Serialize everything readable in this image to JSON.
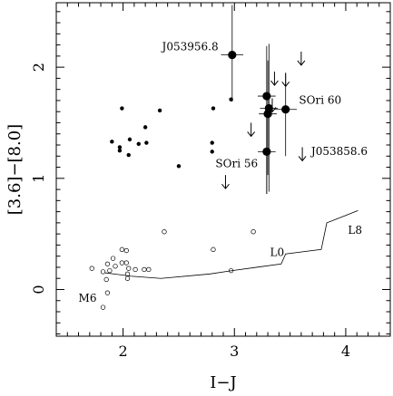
{
  "chart_data": {
    "type": "scatter",
    "xlabel": "I−J",
    "ylabel": "[3.6]−[8.0]",
    "xlim": [
      1.4,
      4.4
    ],
    "ylim": [
      -0.42,
      2.58
    ],
    "x_ticks": [
      2,
      3,
      4
    ],
    "x_tick_labels": [
      "2",
      "3",
      "4"
    ],
    "y_ticks": [
      0,
      1,
      2
    ],
    "y_tick_labels": [
      "0",
      "1",
      "2"
    ],
    "grid": false,
    "series": [
      {
        "marker": "small-filled-circle",
        "points": [
          [
            1.9,
            1.33
          ],
          [
            1.97,
            1.28
          ],
          [
            1.97,
            1.25
          ],
          [
            2.05,
            1.21
          ],
          [
            2.06,
            1.35
          ],
          [
            2.14,
            1.31
          ],
          [
            2.2,
            1.46
          ],
          [
            2.21,
            1.32
          ],
          [
            2.33,
            1.61
          ],
          [
            2.5,
            1.11
          ],
          [
            2.8,
            1.32
          ],
          [
            2.8,
            1.24
          ],
          [
            2.81,
            1.63
          ],
          [
            2.97,
            1.71
          ],
          [
            1.99,
            1.63
          ]
        ]
      },
      {
        "marker": "open-circle",
        "points": [
          [
            1.72,
            0.19
          ],
          [
            1.82,
            0.16
          ],
          [
            1.85,
            0.09
          ],
          [
            1.86,
            0.23
          ],
          [
            1.88,
            0.17
          ],
          [
            1.91,
            0.28
          ],
          [
            1.93,
            0.21
          ],
          [
            1.99,
            0.24
          ],
          [
            1.99,
            0.36
          ],
          [
            2.03,
            0.35
          ],
          [
            2.03,
            0.24
          ],
          [
            2.04,
            0.14
          ],
          [
            2.04,
            0.1
          ],
          [
            2.05,
            0.19
          ],
          [
            2.11,
            0.18
          ],
          [
            2.19,
            0.18
          ],
          [
            2.23,
            0.18
          ],
          [
            2.37,
            0.52
          ],
          [
            2.81,
            0.36
          ],
          [
            2.97,
            0.17
          ],
          [
            3.17,
            0.52
          ],
          [
            1.86,
            -0.03
          ],
          [
            1.82,
            -0.16
          ]
        ]
      },
      {
        "marker": "large-filled-circle-errorbars",
        "points": [
          {
            "x": 2.98,
            "y": 2.11,
            "xerr": 0.1,
            "yerr_lo": 0.42,
            "yerr_hi": 0.45
          },
          {
            "x": 3.29,
            "y": 1.74,
            "xerr": 0.08,
            "yerr_lo": 0.88,
            "yerr_hi": 0.45
          },
          {
            "x": 3.31,
            "y": 1.63,
            "xerr": 0.08,
            "yerr_lo": 0.75,
            "yerr_hi": 0.58
          },
          {
            "x": 3.3,
            "y": 1.58,
            "xerr": 0.08,
            "yerr_lo": 0.55,
            "yerr_hi": 0.48
          },
          {
            "x": 3.29,
            "y": 1.24,
            "xerr": 0.08,
            "yerr_lo": 0.38,
            "yerr_hi": 0.4
          },
          {
            "x": 3.46,
            "y": 1.62,
            "xerr": 0.1,
            "yerr_lo": 0.42,
            "yerr_hi": 0.32
          }
        ]
      },
      {
        "marker": "upper-limit-arrow",
        "points": [
          [
            3.36,
            1.96
          ],
          [
            3.46,
            1.95
          ],
          [
            3.6,
            2.14
          ],
          [
            3.34,
            1.72
          ],
          [
            3.15,
            1.5
          ],
          [
            3.61,
            1.28
          ],
          [
            2.92,
            1.03
          ]
        ]
      }
    ],
    "sequence_line": {
      "points": [
        [
          1.84,
          0.15
        ],
        [
          2.07,
          0.12
        ],
        [
          2.34,
          0.1
        ],
        [
          2.78,
          0.14
        ],
        [
          2.98,
          0.17
        ],
        [
          3.2,
          0.2
        ],
        [
          3.42,
          0.23
        ],
        [
          3.46,
          0.32
        ],
        [
          3.78,
          0.36
        ],
        [
          3.83,
          0.6
        ],
        [
          4.11,
          0.71
        ]
      ]
    },
    "annotations": [
      {
        "text": "J053956.8",
        "x": 2.35,
        "y": 2.15
      },
      {
        "text": "SOri 60",
        "x": 3.58,
        "y": 1.67
      },
      {
        "text": "J053858.6",
        "x": 3.69,
        "y": 1.21
      },
      {
        "text": "SOri 56",
        "x": 2.83,
        "y": 1.1
      },
      {
        "text": "L8",
        "x": 4.02,
        "y": 0.5
      },
      {
        "text": "L0",
        "x": 3.32,
        "y": 0.3
      },
      {
        "text": "M6",
        "x": 1.6,
        "y": -0.11
      }
    ]
  }
}
